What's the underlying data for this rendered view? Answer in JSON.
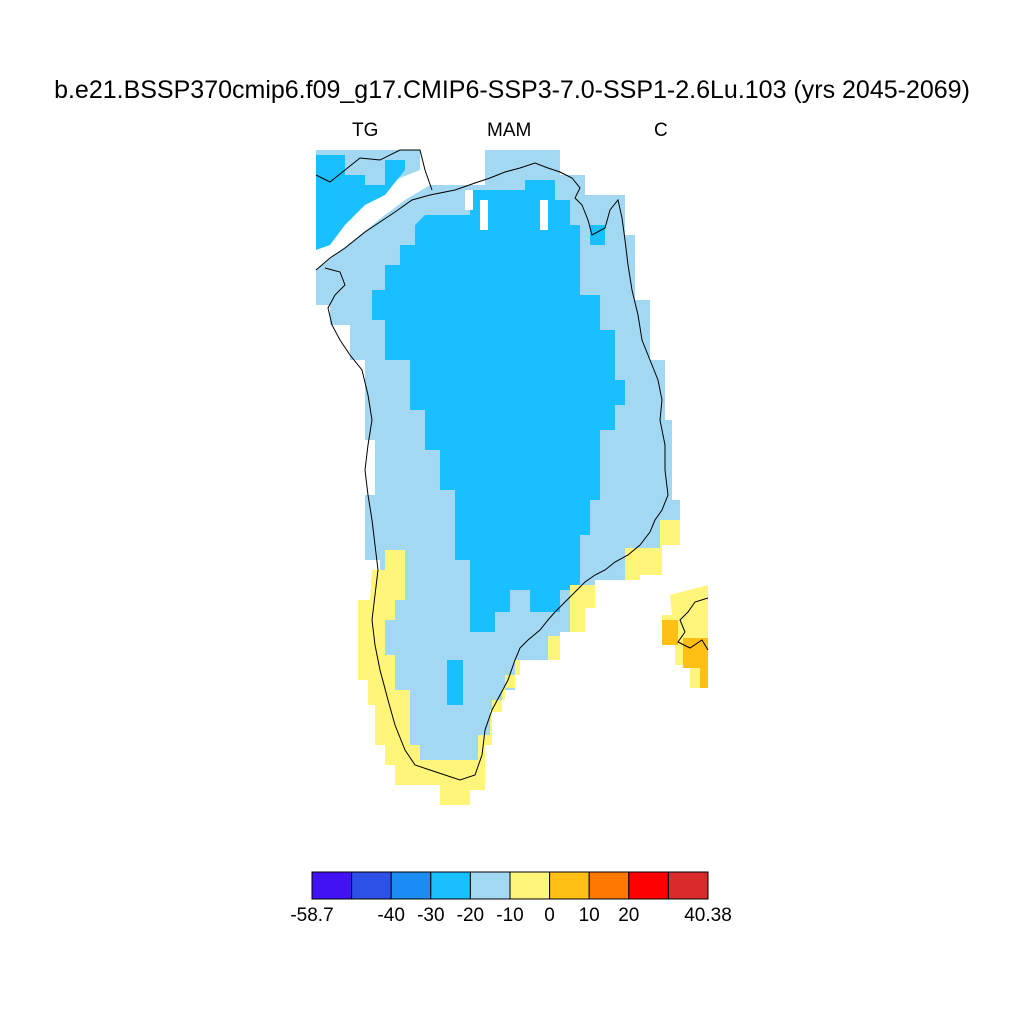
{
  "title": "b.e21.BSSP370cmip6.f09_g17.CMIP6-SSP3-7.0-SSP1-2.6Lu.103 (yrs 2045-2069)",
  "subtitle_left": "TG",
  "subtitle_center": "MAM",
  "subtitle_right": "C",
  "colorbar": {
    "colors": [
      "#4212f5",
      "#2d50e6",
      "#1e8cf5",
      "#19bfff",
      "#a3d8f2",
      "#fff57a",
      "#ffbf14",
      "#ff7800",
      "#ff0000",
      "#d92b2b"
    ],
    "labels": [
      "-58.7",
      "-40",
      "-30",
      "-20",
      "-10",
      "0",
      "10",
      "20",
      "40.38"
    ]
  },
  "map": {
    "region": "Greenland",
    "variable": "TG",
    "season": "MAM",
    "units": "C"
  }
}
